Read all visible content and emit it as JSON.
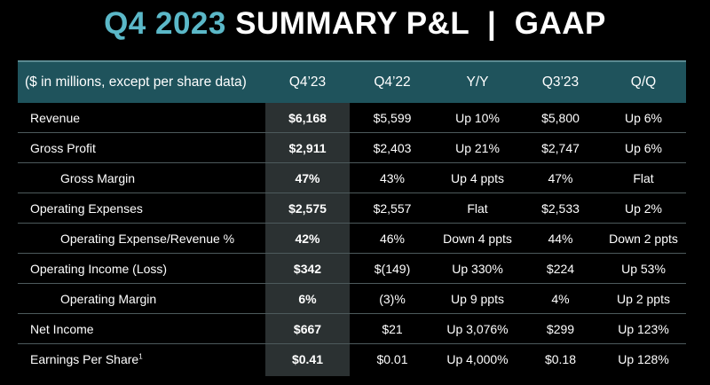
{
  "title": {
    "accent": "Q4 2023",
    "rest": "SUMMARY P&L  |  GAAP"
  },
  "colors": {
    "accent": "#5bb8c8",
    "header_bg": "#1f535c",
    "highlight_col": "#2b3132"
  },
  "table": {
    "headers": [
      "($ in millions, except per share data)",
      "Q4’23",
      "Q4’22",
      "Y/Y",
      "Q3’23",
      "Q/Q"
    ],
    "rows": [
      {
        "label": "Revenue",
        "sup": "",
        "q4_23": "$6,168",
        "q4_22": "$5,599",
        "yy": "Up 10%",
        "q3_23": "$5,800",
        "qq": "Up 6%"
      },
      {
        "label": "Gross Profit",
        "sup": "",
        "q4_23": "$2,911",
        "q4_22": "$2,403",
        "yy": "Up 21%",
        "q3_23": "$2,747",
        "qq": "Up 6%"
      },
      {
        "label": "Gross Margin",
        "sup": "",
        "q4_23": "47%",
        "q4_22": "43%",
        "yy": "Up 4 ppts",
        "q3_23": "47%",
        "qq": "Flat"
      },
      {
        "label": "Operating Expenses",
        "sup": "",
        "q4_23": "$2,575",
        "q4_22": "$2,557",
        "yy": "Flat",
        "q3_23": "$2,533",
        "qq": "Up 2%"
      },
      {
        "label": "Operating Expense/Revenue %",
        "sup": "",
        "q4_23": "42%",
        "q4_22": "46%",
        "yy": "Down 4 ppts",
        "q3_23": "44%",
        "qq": "Down 2 ppts"
      },
      {
        "label": "Operating Income (Loss)",
        "sup": "",
        "q4_23": "$342",
        "q4_22": "$(149)",
        "yy": "Up 330%",
        "q3_23": "$224",
        "qq": "Up 53%"
      },
      {
        "label": "Operating Margin",
        "sup": "",
        "q4_23": "6%",
        "q4_22": "(3)%",
        "yy": "Up 9 ppts",
        "q3_23": "4%",
        "qq": "Up 2 ppts"
      },
      {
        "label": "Net Income",
        "sup": "",
        "q4_23": "$667",
        "q4_22": "$21",
        "yy": "Up 3,076%",
        "q3_23": "$299",
        "qq": "Up 123%"
      },
      {
        "label": "Earnings Per Share",
        "sup": "1",
        "q4_23": "$0.41",
        "q4_22": "$0.01",
        "yy": "Up 4,000%",
        "q3_23": "$0.18",
        "qq": "Up 128%"
      }
    ]
  }
}
